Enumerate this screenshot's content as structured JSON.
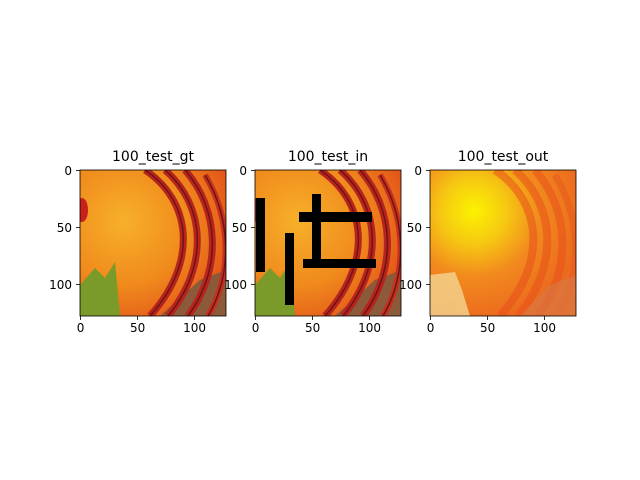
{
  "figure": {
    "panels": [
      {
        "title": "100_test_gt",
        "kind": "ground-truth",
        "xticks": [
          "0",
          "50",
          "100"
        ],
        "yticks": [
          "0",
          "50",
          "100"
        ]
      },
      {
        "title": "100_test_in",
        "kind": "masked-input",
        "xticks": [
          "0",
          "50",
          "100"
        ],
        "yticks": [
          "0",
          "50",
          "100"
        ]
      },
      {
        "title": "100_test_out",
        "kind": "reconstruction",
        "xticks": [
          "0",
          "50",
          "100"
        ],
        "yticks": [
          "0",
          "50",
          "100"
        ]
      }
    ],
    "image_extent": [
      0,
      128
    ],
    "tick_values": [
      0,
      50,
      100
    ],
    "colors": {
      "orange": "#f39a1c",
      "deep_orange": "#e8641a",
      "red_stripe": "#b8241c",
      "dark_stripe": "#6a1618",
      "leaf_green": "#7a9a2a",
      "wood": "#8a5a3a",
      "mask": "#000000",
      "out_yellow": "#f7f000",
      "out_orange": "#f27a1a"
    }
  }
}
